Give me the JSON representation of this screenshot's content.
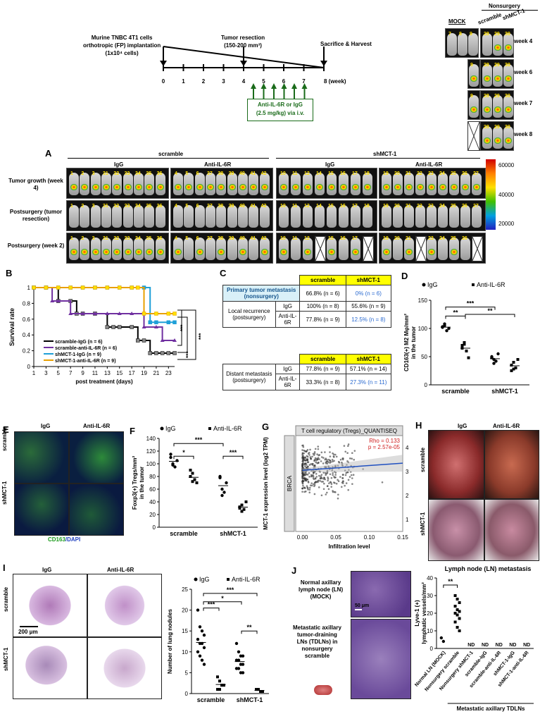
{
  "timeline": {
    "implant": [
      "Murine TNBC 4T1 cells",
      "orthotropic (FP) implantation",
      "(1x10⁴ cells)"
    ],
    "resection": [
      "Tumor resection",
      "(150-200 mm³)"
    ],
    "sacrifice": "Sacrifice & Harvest",
    "ticks": [
      "0",
      "1",
      "2",
      "3",
      "4",
      "5",
      "6",
      "7",
      "8 (week)"
    ],
    "treatment": [
      "Anti-IL-6R or IgG",
      "(2.5 mg/kg) via i.v."
    ]
  },
  "ivis_small": {
    "nonsurgery": "Nonsurgery",
    "mock": "MOCK",
    "scramble": "scramble",
    "shmct1": "shMCT-1",
    "weeks": [
      "week 4",
      "week 6",
      "week 7",
      "week 8"
    ],
    "nums_mock": [
      "7",
      "8",
      "9"
    ],
    "nums_other": [
      "28",
      "29",
      "30"
    ]
  },
  "panelA": {
    "label": "A",
    "scramble": "scramble",
    "shmct1": "shMCT-1",
    "igg": "IgG",
    "anti": "Anti-IL-6R",
    "rows": [
      "Tumor growth (week 4)",
      "Postsurgery (tumor resection)",
      "Postsurgery (week 2)"
    ],
    "scale_ticks": [
      "60000",
      "40000",
      "20000"
    ],
    "nums_g1": [
      "1",
      "2",
      "3",
      "31",
      "32",
      "33",
      "34",
      "35",
      "36"
    ],
    "nums_g2": [
      "4",
      "5",
      "6",
      "37",
      "38",
      "39",
      "40",
      "41",
      "42"
    ],
    "nums_g3": [
      "10",
      "11",
      "12",
      "14",
      "15",
      "16",
      "17",
      "18"
    ],
    "nums_g4": [
      "19",
      "20",
      "21",
      "22",
      "23",
      "24",
      "25",
      "26",
      "27"
    ]
  },
  "panelB": {
    "label": "B",
    "ylabel": "Survival rate",
    "xlabel": "post treatment (days)",
    "xticks": [
      "1",
      "3",
      "5",
      "7",
      "9",
      "11",
      "13",
      "15",
      "17",
      "19",
      "21",
      "23"
    ],
    "yticks": [
      "0",
      "0.2",
      "0.4",
      "0.6",
      "0.8",
      "1"
    ],
    "legend": [
      "scramble-IgG (n = 6)",
      "scramble-anti-IL-6R (n = 6)",
      "shMCT-1-IgG (n = 9)",
      "shMCT-1-anti-IL-6R (n = 9)"
    ],
    "sig": [
      "***",
      "***",
      "***"
    ]
  },
  "panelC": {
    "label": "C",
    "col1": "scramble",
    "col2": "shMCT-1",
    "primary": "Primary tumor metastasis (nonsurgery)",
    "primary_v": [
      "66.8% (n = 6)",
      "0% (n = 6)"
    ],
    "local": "Local recurrence (postsurgery)",
    "distant": "Distant metastasis (postsurgery)",
    "igg": "IgG",
    "anti": "Anti-IL-6R",
    "local_igg": [
      "100% (n = 8)",
      "55.6% (n = 9)"
    ],
    "local_anti": [
      "77.8% (n = 9)",
      "12.5% (n = 8)"
    ],
    "dist_igg": [
      "77.8% (n = 9)",
      "57.1% (n = 14)"
    ],
    "dist_anti": [
      "33.3% (n = 8)",
      "27.3% (n = 11)"
    ]
  },
  "panelD": {
    "label": "D",
    "legend": [
      "IgG",
      "Anti-IL-6R"
    ],
    "ylabel": [
      "CD163(+) M2 Mφ/mm²",
      "in the tumor"
    ],
    "yticks": [
      "0",
      "50",
      "100",
      "150"
    ],
    "xcats": [
      "scramble",
      "shMCT-1"
    ],
    "sig": [
      "**",
      "***",
      "**"
    ]
  },
  "panelE": {
    "label": "E",
    "igg": "IgG",
    "anti": "Anti-IL-6R",
    "scramble": "scramble",
    "shmct1": "shMCT-1",
    "stain_a": "CD163",
    "stain_b": "/DAPI"
  },
  "panelF": {
    "label": "F",
    "legend": [
      "IgG",
      "Anti-IL-6R"
    ],
    "ylabel": [
      "Foxp3(+) Tregs/mm²",
      "in the tumor"
    ],
    "yticks": [
      "0",
      "20",
      "40",
      "60",
      "80",
      "100",
      "120",
      "140"
    ],
    "xcats": [
      "scramble",
      "shMCT-1"
    ],
    "sig": [
      "*",
      "***",
      "***"
    ]
  },
  "panelG": {
    "label": "G",
    "title": "T cell regulatory (Tregs)_QUANTISEQ",
    "ylabel": "MCT-1 expression level (log2 TPM)",
    "xlabel": "Infiltration level",
    "side": "BRCA",
    "rho": "Rho = 0.133",
    "p": "p = 2.57e-05",
    "xticks": [
      "0.00",
      "0.05",
      "0.10",
      "0.15"
    ],
    "yticks": [
      "1",
      "2",
      "3",
      "4"
    ]
  },
  "panelH": {
    "label": "H",
    "igg": "IgG",
    "anti": "Anti-IL-6R",
    "scramble": "scramble",
    "shmct1": "shMCT-1"
  },
  "panelI": {
    "label": "I",
    "igg": "IgG",
    "anti": "Anti-IL-6R",
    "scramble": "scramble",
    "shmct1": "shMCT-1",
    "scalebar": "200 μm",
    "legend": [
      "IgG",
      "Anti-IL-6R"
    ],
    "ylabel": "Number of lung nodules",
    "yticks": [
      "0",
      "5",
      "10",
      "15",
      "20",
      "25"
    ],
    "xcats": [
      "scramble",
      "shMCT-1"
    ],
    "sig": [
      "***",
      "*",
      "***",
      "**"
    ]
  },
  "panelJ": {
    "label": "J",
    "normal": [
      "Normal axillary",
      "lymph node (LN)",
      "(MOCK)"
    ],
    "metastatic": [
      "Metastatic axillary",
      "tumor-draining",
      "LNs (TDLNs) in",
      "nonsurgery",
      "scramble"
    ],
    "scalebar": "50 μm",
    "title": "Lymph node (LN) metastasis",
    "ylabel": [
      "Lyve-1 (+)",
      "lymphatic vessels/mm²"
    ],
    "yticks": [
      "0",
      "10",
      "20",
      "30",
      "40"
    ],
    "xcats": [
      "Normal LN (MOCK)",
      "Nonsurgery scramble",
      "Nonsurgery shMCT-1",
      "scramble-IgG",
      "scramble-anti-IL-6R",
      "shMCT-1-IgG",
      "shMCT-1-anti-IL-6R"
    ],
    "nd": "ND",
    "group": "Metastatic axillary TDLNs",
    "sig": "**"
  },
  "chart_data": [
    {
      "type": "line",
      "title": "",
      "xlabel": "post treatment (days)",
      "ylabel": "Survival rate",
      "ylim": [
        0,
        1
      ],
      "xlim": [
        1,
        24
      ],
      "series": [
        {
          "name": "scramble-IgG (n = 6)",
          "x": [
            1,
            3,
            5,
            7,
            8,
            9,
            11,
            13,
            14,
            15,
            17,
            18,
            19,
            20,
            21,
            22,
            23,
            24
          ],
          "y": [
            1,
            1,
            0.83,
            0.83,
            0.67,
            0.67,
            0.67,
            0.5,
            0.5,
            0.5,
            0.5,
            0.33,
            0.33,
            0.17,
            0.17,
            0.17,
            0.17,
            0.17
          ]
        },
        {
          "name": "scramble-anti-IL-6R (n = 6)",
          "x": [
            1,
            3,
            4,
            5,
            7,
            9,
            11,
            13,
            15,
            17,
            19,
            21,
            22,
            24
          ],
          "y": [
            1,
            1,
            0.83,
            0.83,
            0.67,
            0.67,
            0.67,
            0.67,
            0.67,
            0.67,
            0.5,
            0.5,
            0.33,
            0.33
          ]
        },
        {
          "name": "shMCT-1-IgG (n = 9)",
          "x": [
            1,
            3,
            5,
            7,
            9,
            11,
            13,
            15,
            17,
            19,
            20,
            21,
            23,
            24
          ],
          "y": [
            1,
            1,
            1,
            1,
            1,
            1,
            1,
            1,
            1,
            1,
            0.56,
            0.56,
            0.56,
            0.56
          ]
        },
        {
          "name": "shMCT-1-anti-IL-6R (n = 9)",
          "x": [
            1,
            3,
            5,
            7,
            9,
            11,
            13,
            15,
            17,
            18,
            19,
            21,
            23,
            24
          ],
          "y": [
            1,
            1,
            1,
            1,
            1,
            1,
            1,
            1,
            1,
            1,
            0.67,
            0.67,
            0.67,
            0.67
          ]
        }
      ]
    },
    {
      "type": "scatter",
      "ylabel": "CD163(+) M2 Mφ/mm² in the tumor",
      "categories": [
        "scramble",
        "shMCT-1"
      ],
      "ylim": [
        0,
        150
      ],
      "series": [
        {
          "name": "IgG",
          "values": [
            [
              103,
              108,
              96,
              100,
              102,
              105
            ],
            [
              50,
              38,
              42,
              55,
              48,
              45
            ]
          ]
        },
        {
          "name": "Anti-IL-6R",
          "values": [
            [
              70,
              75,
              60,
              48,
              65,
              72
            ],
            [
              25,
              40,
              30,
              45,
              35,
              28
            ]
          ]
        }
      ]
    },
    {
      "type": "scatter",
      "ylabel": "Foxp3(+) Tregs/mm² in the tumor",
      "categories": [
        "scramble",
        "shMCT-1"
      ],
      "ylim": [
        0,
        140
      ],
      "series": [
        {
          "name": "IgG",
          "values": [
            [
              110,
              100,
              95,
              105,
              115,
              98
            ],
            [
              78,
              60,
              55,
              70,
              80,
              50
            ]
          ]
        },
        {
          "name": "Anti-IL-6R",
          "values": [
            [
              80,
              85,
              75,
              70,
              90,
              72
            ],
            [
              30,
              35,
              28,
              40,
              32,
              25
            ]
          ]
        }
      ]
    },
    {
      "type": "scatter",
      "xlabel": "Infiltration level",
      "ylabel": "MCT-1 expression level (log2 TPM)",
      "xlim": [
        -0.01,
        0.15
      ],
      "ylim": [
        0.5,
        4.5
      ],
      "series": [
        {
          "name": "BRCA",
          "trend": {
            "x": [
              0,
              0.15
            ],
            "y": [
              3.05,
              3.35
            ]
          }
        }
      ]
    },
    {
      "type": "scatter",
      "ylabel": "Number of lung nodules",
      "categories": [
        "scramble",
        "shMCT-1"
      ],
      "ylim": [
        0,
        25
      ],
      "series": [
        {
          "name": "IgG",
          "values": [
            [
              20,
              16,
              15,
              14,
              13,
              12,
              12,
              11,
              10,
              9,
              8,
              7
            ],
            [
              12,
              10,
              9,
              9,
              8,
              8,
              7,
              7,
              6,
              6,
              5,
              5
            ]
          ]
        },
        {
          "name": "Anti-IL-6R",
          "values": [
            [
              4,
              3,
              2,
              2,
              1,
              1
            ],
            [
              1,
              1,
              0.5,
              0.5
            ]
          ]
        }
      ]
    },
    {
      "type": "scatter",
      "title": "Lymph node (LN) metastasis",
      "ylabel": "Lyve-1 (+) lymphatic vessels/mm²",
      "categories": [
        "Normal LN (MOCK)",
        "Nonsurgery scramble"
      ],
      "ylim": [
        0,
        40
      ],
      "series": [
        {
          "name": "",
          "values": [
            [
              6,
              4
            ],
            [
              30,
              28,
              26,
              24,
              22,
              21,
              20,
              19,
              17,
              15,
              12,
              10
            ]
          ]
        }
      ]
    }
  ]
}
